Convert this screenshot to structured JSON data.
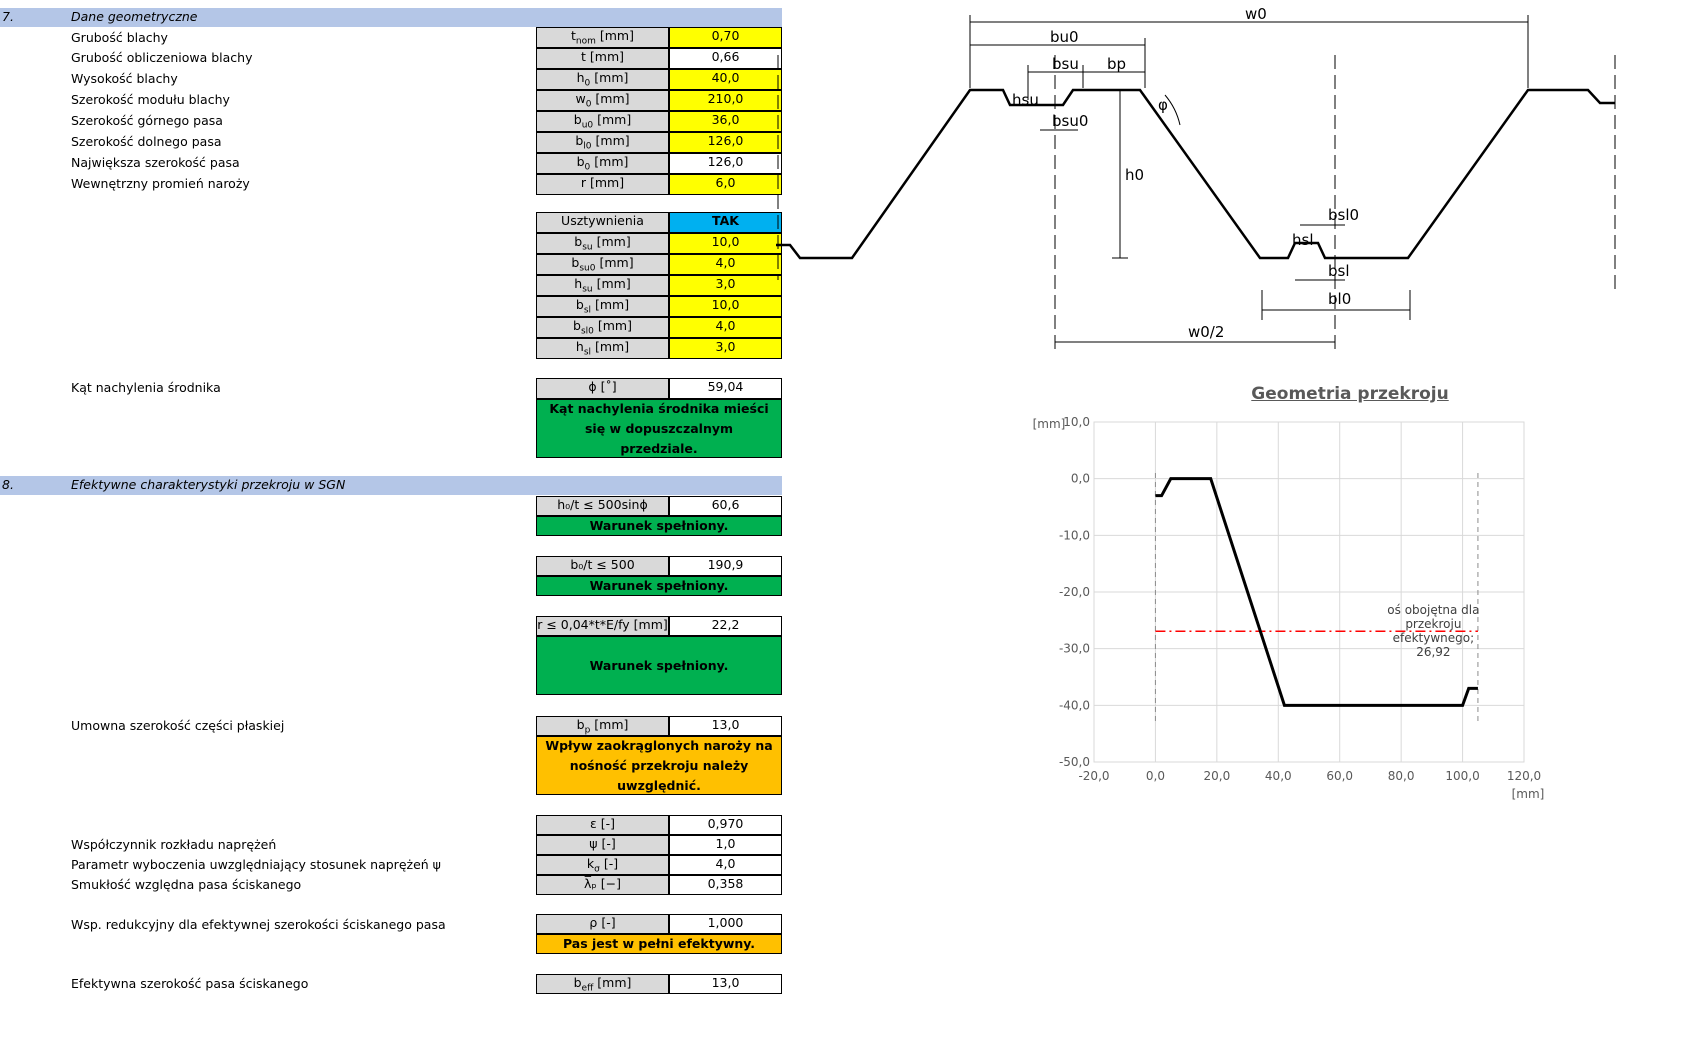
{
  "section7": {
    "number": "7.",
    "title": "Dane geometryczne"
  },
  "geom_rows": [
    {
      "desc": "Grubość blachy",
      "sym": "t",
      "sub": "nom",
      "unit": "[mm]",
      "value": "0,70"
    },
    {
      "desc": "Grubość obliczeniowa blachy",
      "sym": "t",
      "sub": "",
      "unit": "[mm]",
      "value": "0,66"
    },
    {
      "desc": "Wysokość blachy",
      "sym": "h",
      "sub": "0",
      "unit": "[mm]",
      "value": "40,0"
    },
    {
      "desc": "Szerokość modułu blachy",
      "sym": "w",
      "sub": "0",
      "unit": "[mm]",
      "value": "210,0"
    },
    {
      "desc": "Szerokość górnego pasa",
      "sym": "b",
      "sub": "u0",
      "unit": "[mm]",
      "value": "36,0"
    },
    {
      "desc": "Szerokość dolnego pasa",
      "sym": "b",
      "sub": "l0",
      "unit": "[mm]",
      "value": "126,0"
    },
    {
      "desc": "Największa szerokość pasa",
      "sym": "b",
      "sub": "0",
      "unit": "[mm]",
      "value": "126,0"
    },
    {
      "desc": "Wewnętrzny promień naroży",
      "sym": "r",
      "sub": "",
      "unit": "[mm]",
      "value": "6,0"
    }
  ],
  "stiffeners": {
    "label": "Usztywnienia",
    "value": "TAK"
  },
  "stiff_rows": [
    {
      "sym": "b",
      "sub": "su",
      "unit": "[mm]",
      "value": "10,0"
    },
    {
      "sym": "b",
      "sub": "su0",
      "unit": "[mm]",
      "value": "4,0"
    },
    {
      "sym": "h",
      "sub": "su",
      "unit": "[mm]",
      "value": "3,0"
    },
    {
      "sym": "b",
      "sub": "sl",
      "unit": "[mm]",
      "value": "10,0"
    },
    {
      "sym": "b",
      "sub": "sl0",
      "unit": "[mm]",
      "value": "4,0"
    },
    {
      "sym": "h",
      "sub": "sl",
      "unit": "[mm]",
      "value": "3,0"
    }
  ],
  "angle": {
    "desc": "Kąt nachylenia środnika",
    "label": "ϕ [˚]",
    "value": "59,04",
    "status": "Kąt nachylenia środnika mieści się w dopuszczalnym przedziale."
  },
  "section8": {
    "number": "8.",
    "title": "Efektywne charakterystyki przekroju w SGN"
  },
  "check1": {
    "label": "h₀/t ≤ 500sinϕ",
    "value": "60,6",
    "status": "Warunek spełniony."
  },
  "check2": {
    "label": "b₀/t ≤ 500",
    "value": "190,9",
    "status": "Warunek spełniony."
  },
  "check3": {
    "label": "r ≤ 0,04*t*E/fy [mm]",
    "value": "22,2",
    "status": "Warunek spełniony."
  },
  "bp": {
    "desc": "Umowna szerokość części płaskiej",
    "sym": "b",
    "sub": "p",
    "unit": "[mm]",
    "value": "13,0",
    "status": "Wpływ zaokrąglonych naroży na nośność przekroju należy uwzględnić."
  },
  "eps": {
    "label": "ε [-]",
    "value": "0,970"
  },
  "psi": {
    "desc": "Współczynnik rozkładu naprężeń",
    "label": "ψ [-]",
    "value": "1,0"
  },
  "ksig": {
    "desc": "Parametr wyboczenia uwzględniający stosunek naprężeń ψ",
    "sym": "k",
    "sub": "σ",
    "unit": "[-]",
    "value": "4,0"
  },
  "lam": {
    "desc": "Smukłość względna pasa ściskanego",
    "label": "λ̅ₚ [−]",
    "value": "0,358"
  },
  "rho": {
    "desc": "Wsp. redukcyjny dla efektywnej szerokości ściskanego pasa",
    "label": "ρ [-]",
    "value": "1,000",
    "status": "Pas jest w pełni efektywny."
  },
  "beff": {
    "desc": "Efektywna szerokość pasa ściskanego",
    "sym": "b",
    "sub": "eff",
    "unit": "[mm]",
    "value": "13,0"
  },
  "diagram": {
    "labels": {
      "w0": "w0",
      "bu0": "bu0",
      "bsu": "bsu",
      "bp": "bp",
      "hsu": "hsu",
      "bsu0": "bsu0",
      "phi": "φ",
      "h0": "h0",
      "bsl0": "bsl0",
      "hsl": "hsl",
      "bsl": "bsl",
      "bl0": "bl0",
      "w0half": "w0/2"
    }
  },
  "chart_data": {
    "type": "line",
    "title": "Geometria przekroju",
    "xlabel": "[mm]",
    "ylabel": "[mm]",
    "xlim": [
      -20,
      120
    ],
    "ylim": [
      -50,
      10
    ],
    "x_ticks": [
      "-20,0",
      "0,0",
      "20,0",
      "40,0",
      "60,0",
      "80,0",
      "100,0",
      "120,0"
    ],
    "y_ticks": [
      "10,0",
      "0,0",
      "-10,0",
      "-20,0",
      "-30,0",
      "-40,0",
      "-50,0"
    ],
    "series": [
      {
        "values_x": [
          0,
          2,
          5,
          18,
          42,
          100,
          102,
          105
        ],
        "values_y": [
          -3,
          -3,
          0,
          0,
          -40,
          -40,
          -37,
          -37
        ]
      }
    ],
    "neutral_axis": {
      "y": -26.92,
      "label": "oś obojętna dla przekroju efektywnego; 26,92"
    },
    "dashed_x": [
      0,
      105
    ]
  },
  "colors": {
    "section": "#b4c6e7",
    "input": "#ffff00",
    "ok": "#00b050",
    "warn": "#ffc000",
    "flag": "#00b0f0"
  }
}
